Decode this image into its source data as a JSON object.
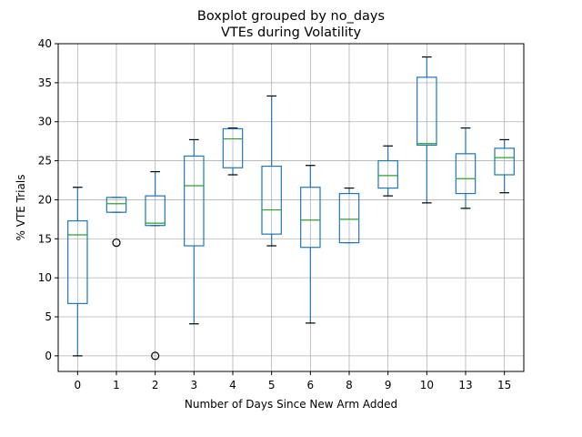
{
  "chart_data": {
    "type": "box",
    "title": "Boxplot grouped by no_days",
    "subtitle": "VTEs during Volatility",
    "xlabel": "Number of Days Since New Arm Added",
    "ylabel": "% VTE Trials",
    "ylim": [
      -2,
      40
    ],
    "yticks": [
      "0",
      "5",
      "10",
      "15",
      "20",
      "25",
      "30",
      "35",
      "40"
    ],
    "grid": true,
    "categories": [
      "0",
      "1",
      "2",
      "3",
      "4",
      "5",
      "6",
      "8",
      "9",
      "10",
      "13",
      "15"
    ],
    "boxes": [
      {
        "whislo": 0.0,
        "q1": 6.7,
        "med": 15.5,
        "q3": 17.3,
        "whishi": 21.6,
        "fliers": []
      },
      {
        "whislo": 18.4,
        "q1": 18.4,
        "med": 19.5,
        "q3": 20.3,
        "whishi": 20.3,
        "fliers": [
          14.5
        ]
      },
      {
        "whislo": 16.7,
        "q1": 16.7,
        "med": 17.0,
        "q3": 20.5,
        "whishi": 23.6,
        "fliers": [
          0.0
        ]
      },
      {
        "whislo": 4.1,
        "q1": 14.1,
        "med": 21.8,
        "q3": 25.6,
        "whishi": 27.7,
        "fliers": []
      },
      {
        "whislo": 23.2,
        "q1": 24.1,
        "med": 27.8,
        "q3": 29.1,
        "whishi": 29.2,
        "fliers": []
      },
      {
        "whislo": 14.1,
        "q1": 15.6,
        "med": 18.7,
        "q3": 24.3,
        "whishi": 33.3,
        "fliers": []
      },
      {
        "whislo": 4.2,
        "q1": 13.9,
        "med": 17.4,
        "q3": 21.6,
        "whishi": 24.4,
        "fliers": []
      },
      {
        "whislo": 14.5,
        "q1": 14.5,
        "med": 17.5,
        "q3": 20.8,
        "whishi": 21.5,
        "fliers": []
      },
      {
        "whislo": 20.5,
        "q1": 21.5,
        "med": 23.1,
        "q3": 25.0,
        "whishi": 26.9,
        "fliers": []
      },
      {
        "whislo": 19.6,
        "q1": 27.0,
        "med": 27.2,
        "q3": 35.7,
        "whishi": 38.3,
        "fliers": []
      },
      {
        "whislo": 18.9,
        "q1": 20.8,
        "med": 22.7,
        "q3": 25.9,
        "whishi": 29.2,
        "fliers": []
      },
      {
        "whislo": 20.9,
        "q1": 23.2,
        "med": 25.4,
        "q3": 26.6,
        "whishi": 27.7,
        "fliers": []
      }
    ],
    "colors": {
      "box": "#1f77b4",
      "median": "#2ca02c",
      "whisker_cap": "#000000",
      "grid": "#b0b0b0",
      "frame": "#000000"
    }
  }
}
